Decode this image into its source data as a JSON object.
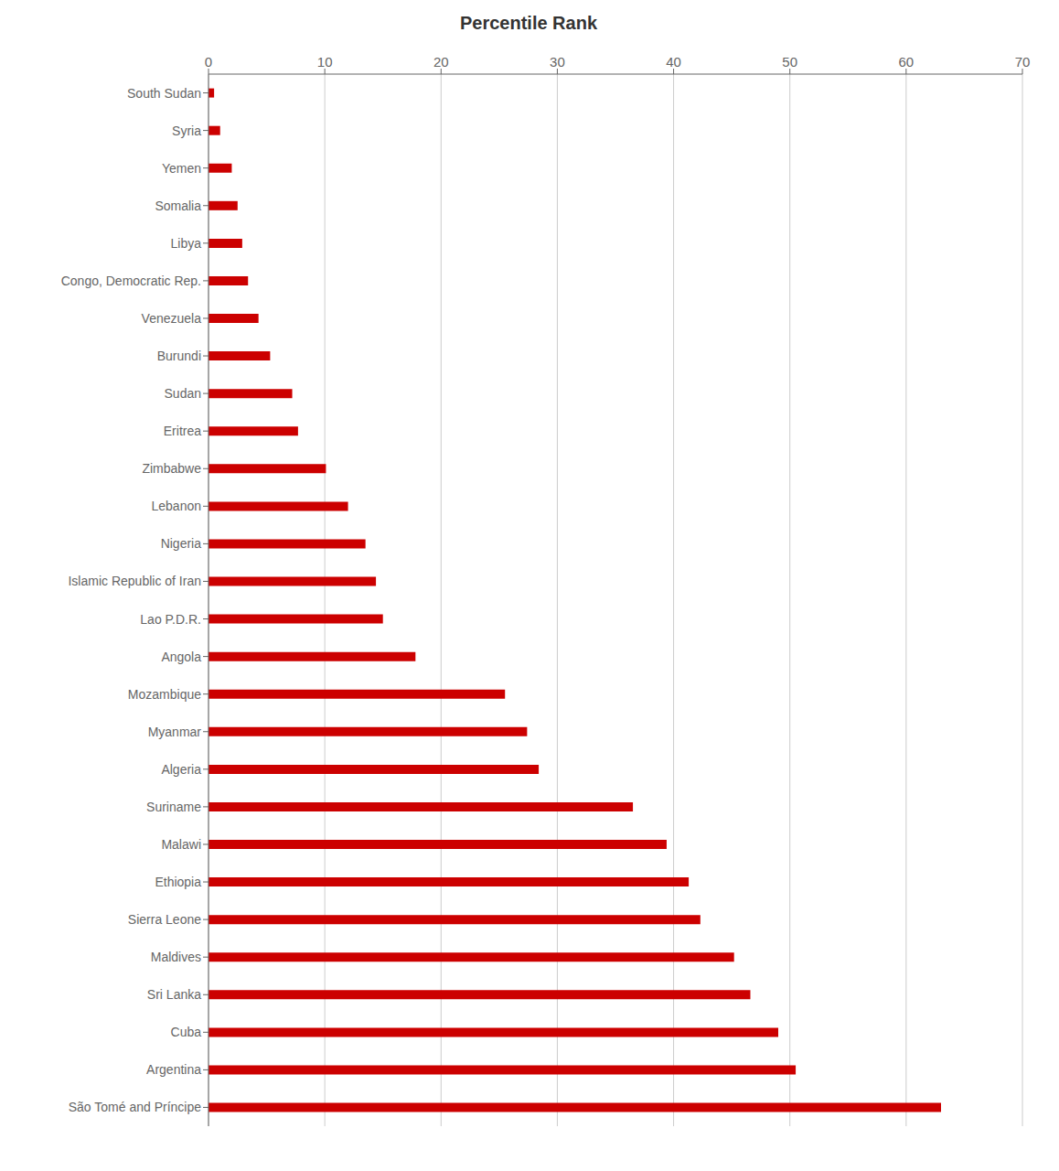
{
  "chart_data": {
    "type": "bar",
    "title": "Percentile Rank",
    "orientation": "horizontal",
    "categories": [
      "South Sudan",
      "Syria",
      "Yemen",
      "Somalia",
      "Libya",
      "Congo, Democratic Rep.",
      "Venezuela",
      "Burundi",
      "Sudan",
      "Eritrea",
      "Zimbabwe",
      "Lebanon",
      "Nigeria",
      "Islamic Republic of Iran",
      "Lao P.D.R.",
      "Angola",
      "Mozambique",
      "Myanmar",
      "Algeria",
      "Suriname",
      "Malawi",
      "Ethiopia",
      "Sierra Leone",
      "Maldives",
      "Sri Lanka",
      "Cuba",
      "Argentina",
      "São Tomé and Príncipe"
    ],
    "values": [
      0.48,
      1.0,
      2.0,
      2.5,
      2.9,
      3.4,
      4.3,
      5.3,
      7.2,
      7.7,
      10.1,
      12.0,
      13.5,
      14.4,
      15.0,
      17.8,
      25.5,
      27.4,
      28.4,
      36.5,
      39.4,
      41.3,
      42.3,
      45.2,
      46.6,
      49.0,
      50.5,
      63.0
    ],
    "color": "#cc0000",
    "xlim": [
      0,
      70
    ],
    "xticks": [
      0,
      10,
      20,
      30,
      40,
      50,
      60,
      70
    ],
    "grid": true
  }
}
